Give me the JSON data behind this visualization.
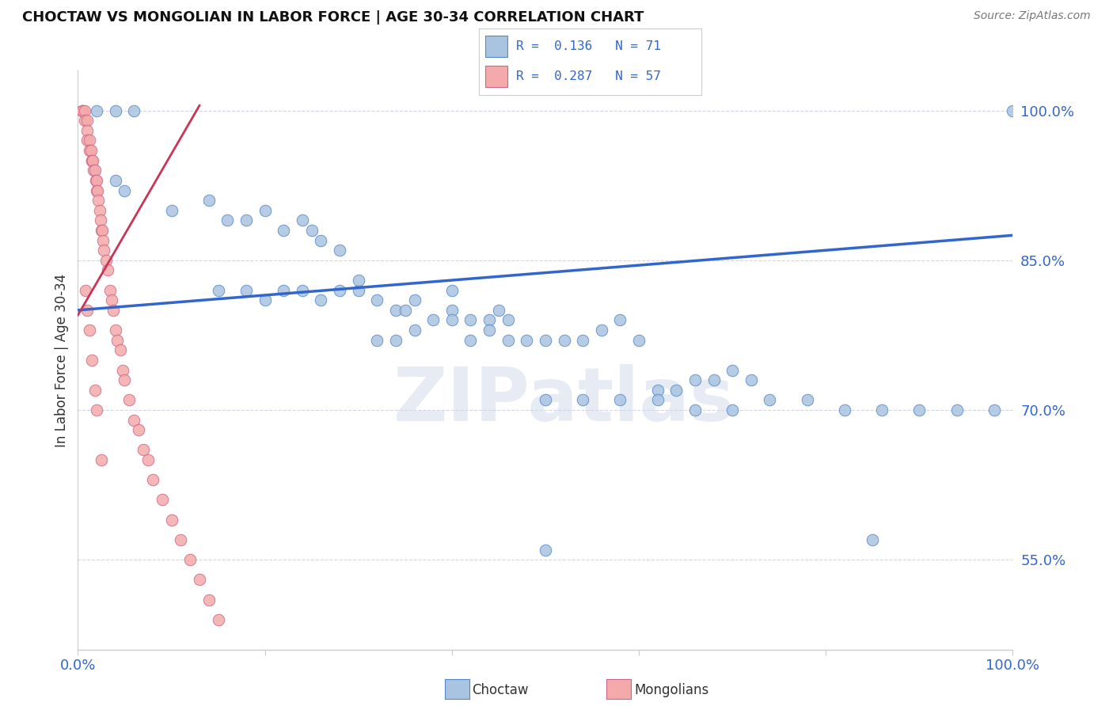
{
  "title": "CHOCTAW VS MONGOLIAN IN LABOR FORCE | AGE 30-34 CORRELATION CHART",
  "source_text": "Source: ZipAtlas.com",
  "ylabel": "In Labor Force | Age 30-34",
  "xlim": [
    0.0,
    1.0
  ],
  "ylim": [
    0.46,
    1.04
  ],
  "yticks": [
    0.55,
    0.7,
    0.85,
    1.0
  ],
  "ytick_labels": [
    "55.0%",
    "70.0%",
    "85.0%",
    "100.0%"
  ],
  "blue_R": 0.136,
  "blue_N": 71,
  "pink_R": 0.287,
  "pink_N": 57,
  "blue_color": "#A8C4E0",
  "pink_color": "#F4AAAA",
  "blue_edge_color": "#5588CC",
  "pink_edge_color": "#CC6688",
  "blue_line_color": "#3366CC",
  "pink_line_color": "#CC3355",
  "legend_label_blue": "Choctaw",
  "legend_label_pink": "Mongolians",
  "watermark": "ZIPatlas",
  "blue_scatter_x": [
    0.02,
    0.04,
    0.06,
    0.04,
    0.05,
    0.1,
    0.14,
    0.16,
    0.18,
    0.2,
    0.22,
    0.24,
    0.25,
    0.26,
    0.28,
    0.15,
    0.18,
    0.2,
    0.22,
    0.24,
    0.26,
    0.28,
    0.3,
    0.3,
    0.32,
    0.34,
    0.35,
    0.36,
    0.38,
    0.4,
    0.4,
    0.42,
    0.44,
    0.45,
    0.46,
    0.32,
    0.34,
    0.36,
    0.4,
    0.42,
    0.44,
    0.46,
    0.48,
    0.5,
    0.52,
    0.54,
    0.56,
    0.58,
    0.6,
    0.62,
    0.64,
    0.66,
    0.68,
    0.7,
    0.72,
    0.5,
    0.54,
    0.58,
    0.62,
    0.66,
    0.7,
    0.74,
    0.78,
    0.82,
    0.86,
    0.9,
    0.94,
    0.98,
    0.85,
    1.0,
    0.5
  ],
  "blue_scatter_y": [
    1.0,
    1.0,
    1.0,
    0.93,
    0.92,
    0.9,
    0.91,
    0.89,
    0.89,
    0.9,
    0.88,
    0.89,
    0.88,
    0.87,
    0.86,
    0.82,
    0.82,
    0.81,
    0.82,
    0.82,
    0.81,
    0.82,
    0.82,
    0.83,
    0.81,
    0.8,
    0.8,
    0.81,
    0.79,
    0.8,
    0.82,
    0.79,
    0.79,
    0.8,
    0.79,
    0.77,
    0.77,
    0.78,
    0.79,
    0.77,
    0.78,
    0.77,
    0.77,
    0.77,
    0.77,
    0.77,
    0.78,
    0.79,
    0.77,
    0.72,
    0.72,
    0.73,
    0.73,
    0.74,
    0.73,
    0.71,
    0.71,
    0.71,
    0.71,
    0.7,
    0.7,
    0.71,
    0.71,
    0.7,
    0.7,
    0.7,
    0.7,
    0.7,
    0.57,
    1.0,
    0.56
  ],
  "pink_scatter_x": [
    0.005,
    0.005,
    0.005,
    0.007,
    0.007,
    0.01,
    0.01,
    0.01,
    0.012,
    0.012,
    0.014,
    0.015,
    0.015,
    0.016,
    0.017,
    0.018,
    0.019,
    0.02,
    0.02,
    0.021,
    0.022,
    0.023,
    0.024,
    0.025,
    0.026,
    0.027,
    0.028,
    0.03,
    0.032,
    0.034,
    0.036,
    0.038,
    0.04,
    0.042,
    0.045,
    0.048,
    0.05,
    0.055,
    0.06,
    0.065,
    0.07,
    0.075,
    0.08,
    0.09,
    0.1,
    0.11,
    0.12,
    0.13,
    0.14,
    0.15,
    0.008,
    0.01,
    0.012,
    0.015,
    0.018,
    0.02,
    0.025
  ],
  "pink_scatter_y": [
    1.0,
    1.0,
    1.0,
    1.0,
    0.99,
    0.99,
    0.98,
    0.97,
    0.97,
    0.96,
    0.96,
    0.95,
    0.95,
    0.95,
    0.94,
    0.94,
    0.93,
    0.93,
    0.92,
    0.92,
    0.91,
    0.9,
    0.89,
    0.88,
    0.88,
    0.87,
    0.86,
    0.85,
    0.84,
    0.82,
    0.81,
    0.8,
    0.78,
    0.77,
    0.76,
    0.74,
    0.73,
    0.71,
    0.69,
    0.68,
    0.66,
    0.65,
    0.63,
    0.61,
    0.59,
    0.57,
    0.55,
    0.53,
    0.51,
    0.49,
    0.82,
    0.8,
    0.78,
    0.75,
    0.72,
    0.7,
    0.65
  ],
  "blue_trend_x": [
    0.0,
    1.0
  ],
  "blue_trend_y": [
    0.8,
    0.875
  ],
  "pink_trend_x": [
    0.0,
    0.13
  ],
  "pink_trend_y": [
    0.795,
    1.005
  ]
}
